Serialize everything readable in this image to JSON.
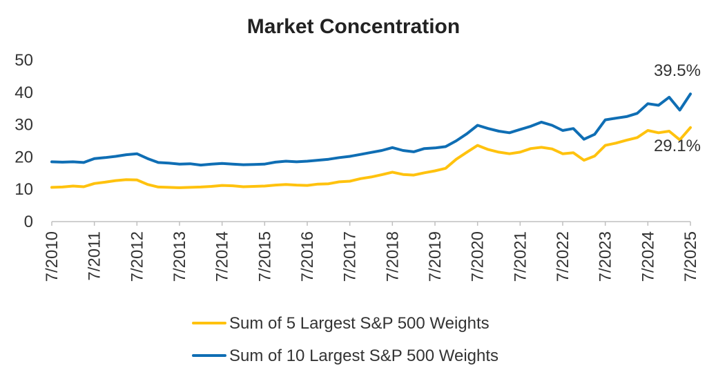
{
  "chart_data": {
    "type": "line",
    "title": "Market Concentration",
    "xlabel": "",
    "ylabel": "",
    "ylim": [
      0,
      50
    ],
    "yticks": [
      0,
      10,
      20,
      30,
      40,
      50
    ],
    "xtick_labels": [
      "7/2010",
      "7/2011",
      "7/2012",
      "7/2013",
      "7/2014",
      "7/2015",
      "7/2016",
      "7/2017",
      "7/2018",
      "7/2019",
      "7/2020",
      "7/2021",
      "7/2022",
      "7/2023",
      "7/2024",
      "7/2025"
    ],
    "xrange": [
      2010.5,
      2025.5
    ],
    "grid": false,
    "legend_position": "bottom",
    "series": [
      {
        "name": "Sum of 5 Largest S&P 500 Weights",
        "color": "#FFC20E",
        "end_label": "29.1%",
        "points": [
          [
            2010.5,
            10.6
          ],
          [
            2010.75,
            10.7
          ],
          [
            2011.0,
            11.0
          ],
          [
            2011.25,
            10.8
          ],
          [
            2011.5,
            11.8
          ],
          [
            2011.75,
            12.2
          ],
          [
            2012.0,
            12.7
          ],
          [
            2012.25,
            13.0
          ],
          [
            2012.5,
            12.9
          ],
          [
            2012.75,
            11.5
          ],
          [
            2013.0,
            10.7
          ],
          [
            2013.25,
            10.6
          ],
          [
            2013.5,
            10.5
          ],
          [
            2013.75,
            10.6
          ],
          [
            2014.0,
            10.7
          ],
          [
            2014.25,
            10.9
          ],
          [
            2014.5,
            11.2
          ],
          [
            2014.75,
            11.1
          ],
          [
            2015.0,
            10.8
          ],
          [
            2015.25,
            10.9
          ],
          [
            2015.5,
            11.0
          ],
          [
            2015.75,
            11.3
          ],
          [
            2016.0,
            11.5
          ],
          [
            2016.25,
            11.3
          ],
          [
            2016.5,
            11.2
          ],
          [
            2016.75,
            11.6
          ],
          [
            2017.0,
            11.7
          ],
          [
            2017.25,
            12.3
          ],
          [
            2017.5,
            12.5
          ],
          [
            2017.75,
            13.3
          ],
          [
            2018.0,
            13.8
          ],
          [
            2018.25,
            14.5
          ],
          [
            2018.5,
            15.3
          ],
          [
            2018.75,
            14.6
          ],
          [
            2019.0,
            14.4
          ],
          [
            2019.25,
            15.1
          ],
          [
            2019.5,
            15.7
          ],
          [
            2019.75,
            16.5
          ],
          [
            2020.0,
            19.3
          ],
          [
            2020.25,
            21.5
          ],
          [
            2020.5,
            23.6
          ],
          [
            2020.75,
            22.3
          ],
          [
            2021.0,
            21.5
          ],
          [
            2021.25,
            21.0
          ],
          [
            2021.5,
            21.5
          ],
          [
            2021.75,
            22.6
          ],
          [
            2022.0,
            23.0
          ],
          [
            2022.25,
            22.5
          ],
          [
            2022.5,
            21.0
          ],
          [
            2022.75,
            21.3
          ],
          [
            2023.0,
            19.0
          ],
          [
            2023.25,
            20.3
          ],
          [
            2023.5,
            23.6
          ],
          [
            2023.75,
            24.3
          ],
          [
            2024.0,
            25.2
          ],
          [
            2024.25,
            26.0
          ],
          [
            2024.5,
            28.2
          ],
          [
            2024.75,
            27.5
          ],
          [
            2025.0,
            28.0
          ],
          [
            2025.25,
            25.3
          ],
          [
            2025.5,
            29.1
          ]
        ]
      },
      {
        "name": "Sum of 10 Largest S&P 500 Weights",
        "color": "#0F6EB4",
        "end_label": "39.5%",
        "points": [
          [
            2010.5,
            18.5
          ],
          [
            2010.75,
            18.4
          ],
          [
            2011.0,
            18.5
          ],
          [
            2011.25,
            18.3
          ],
          [
            2011.5,
            19.5
          ],
          [
            2011.75,
            19.8
          ],
          [
            2012.0,
            20.2
          ],
          [
            2012.25,
            20.7
          ],
          [
            2012.5,
            21.0
          ],
          [
            2012.75,
            19.5
          ],
          [
            2013.0,
            18.3
          ],
          [
            2013.25,
            18.1
          ],
          [
            2013.5,
            17.8
          ],
          [
            2013.75,
            17.9
          ],
          [
            2014.0,
            17.5
          ],
          [
            2014.25,
            17.8
          ],
          [
            2014.5,
            18.0
          ],
          [
            2014.75,
            17.8
          ],
          [
            2015.0,
            17.6
          ],
          [
            2015.25,
            17.7
          ],
          [
            2015.5,
            17.8
          ],
          [
            2015.75,
            18.4
          ],
          [
            2016.0,
            18.7
          ],
          [
            2016.25,
            18.5
          ],
          [
            2016.5,
            18.7
          ],
          [
            2016.75,
            19.0
          ],
          [
            2017.0,
            19.3
          ],
          [
            2017.25,
            19.8
          ],
          [
            2017.5,
            20.2
          ],
          [
            2017.75,
            20.8
          ],
          [
            2018.0,
            21.4
          ],
          [
            2018.25,
            22.0
          ],
          [
            2018.5,
            22.9
          ],
          [
            2018.75,
            22.0
          ],
          [
            2019.0,
            21.6
          ],
          [
            2019.25,
            22.6
          ],
          [
            2019.5,
            22.8
          ],
          [
            2019.75,
            23.2
          ],
          [
            2020.0,
            25.0
          ],
          [
            2020.25,
            27.2
          ],
          [
            2020.5,
            29.8
          ],
          [
            2020.75,
            28.8
          ],
          [
            2021.0,
            28.0
          ],
          [
            2021.25,
            27.5
          ],
          [
            2021.5,
            28.5
          ],
          [
            2021.75,
            29.5
          ],
          [
            2022.0,
            30.8
          ],
          [
            2022.25,
            29.8
          ],
          [
            2022.5,
            28.2
          ],
          [
            2022.75,
            28.8
          ],
          [
            2023.0,
            25.5
          ],
          [
            2023.25,
            27.0
          ],
          [
            2023.5,
            31.5
          ],
          [
            2023.75,
            32.0
          ],
          [
            2024.0,
            32.5
          ],
          [
            2024.25,
            33.5
          ],
          [
            2024.5,
            36.5
          ],
          [
            2024.75,
            36.0
          ],
          [
            2025.0,
            38.5
          ],
          [
            2025.25,
            34.5
          ],
          [
            2025.5,
            39.5
          ]
        ]
      }
    ]
  }
}
